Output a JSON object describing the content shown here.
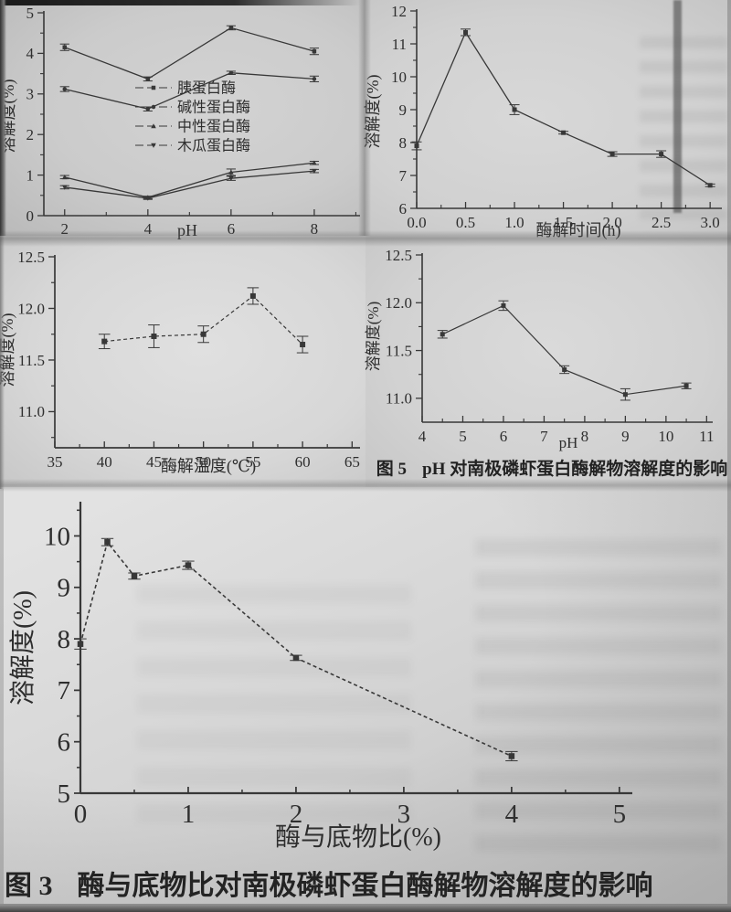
{
  "page": {
    "type": "scanned grayscale journal figure page",
    "ink_color": "#383838",
    "text_color": "#2e2e2e",
    "paper_color": "#cdcdcd"
  },
  "captions": {
    "fig5": {
      "label": "图 5",
      "text": "pH 对南极磷虾蛋白酶解物溶解度的影响"
    },
    "fig3": {
      "label": "图 3",
      "text": "酶与底物比对南极磷虾蛋白酶解物溶解度的影响"
    }
  },
  "chart_data": [
    {
      "id": "solubility-vs-ph-four-proteases",
      "type": "line",
      "title": "",
      "xlabel": "pH",
      "ylabel": "溶解度(%)",
      "xlim": [
        1.5,
        9.1
      ],
      "ylim": [
        0,
        5
      ],
      "xticks": [
        2,
        4,
        6,
        8
      ],
      "xtick_labels": [
        "2",
        "4",
        "6",
        "8"
      ],
      "xminor": [
        3,
        5,
        7,
        9
      ],
      "yticks": [
        0,
        1,
        2,
        3,
        4,
        5
      ],
      "ytick_labels": [
        "0",
        "1",
        "2",
        "3",
        "4",
        "5"
      ],
      "yminor": [
        0.5,
        1.5,
        2.5,
        3.5,
        4.5
      ],
      "grid": false,
      "legend_position": "center-right",
      "x": [
        2,
        4,
        6,
        8
      ],
      "series": [
        {
          "name": "胰蛋白酶",
          "marker": "square",
          "values": [
            4.15,
            3.37,
            4.63,
            4.05
          ],
          "err": [
            0.08,
            0.05,
            0.05,
            0.08
          ]
        },
        {
          "name": "碱性蛋白酶",
          "marker": "circle",
          "values": [
            3.12,
            2.63,
            3.52,
            3.37
          ],
          "err": [
            0.06,
            0.05,
            0.04,
            0.07
          ]
        },
        {
          "name": "中性蛋白酶",
          "marker": "triangle",
          "values": [
            0.95,
            0.45,
            1.07,
            1.3
          ],
          "err": [
            0.04,
            0.03,
            0.08,
            0.04
          ]
        },
        {
          "name": "木瓜蛋白酶",
          "marker": "triangle-down",
          "values": [
            0.7,
            0.43,
            0.92,
            1.1
          ],
          "err": [
            0.04,
            0.03,
            0.05,
            0.04
          ]
        }
      ]
    },
    {
      "id": "solubility-vs-hydrolysis-time",
      "type": "line",
      "title": "",
      "xlabel": "酶解时间(h)",
      "ylabel": "溶解度(%)",
      "xlim": [
        0,
        3.12
      ],
      "ylim": [
        6,
        12
      ],
      "xticks": [
        0,
        0.5,
        1,
        1.5,
        2,
        2.5,
        3
      ],
      "xtick_labels": [
        "0.0",
        "0.5",
        "1.0",
        "1.5",
        "2.0",
        "2.5",
        "3.0"
      ],
      "xminor": [
        0.25,
        0.75,
        1.25,
        1.75,
        2.25,
        2.75
      ],
      "yticks": [
        6,
        7,
        8,
        9,
        10,
        11,
        12
      ],
      "ytick_labels": [
        "6",
        "7",
        "8",
        "9",
        "10",
        "11",
        "12"
      ],
      "yminor": [
        6.5,
        7.5,
        8.5,
        9.5,
        10.5,
        11.5
      ],
      "grid": false,
      "x": [
        0,
        0.5,
        1,
        1.5,
        2,
        2.5,
        3
      ],
      "series": [
        {
          "name": "溶解度",
          "marker": "square",
          "values": [
            7.9,
            11.35,
            9.0,
            8.3,
            7.65,
            7.65,
            6.7
          ],
          "err": [
            0.12,
            0.1,
            0.15,
            0.04,
            0.07,
            0.1,
            0.04
          ]
        }
      ]
    },
    {
      "id": "solubility-vs-hydrolysis-temperature",
      "type": "line",
      "title": "",
      "xlabel": "酶解温度(℃)",
      "ylabel": "溶解度(%)",
      "xlim": [
        35,
        65.8
      ],
      "ylim": [
        10.65,
        12.5
      ],
      "xticks": [
        35,
        40,
        45,
        50,
        55,
        60,
        65
      ],
      "xtick_labels": [
        "35",
        "40",
        "45",
        "50",
        "55",
        "60",
        "65"
      ],
      "xminor": [
        37.5,
        42.5,
        47.5,
        52.5,
        57.5,
        62.5
      ],
      "yticks": [
        11.0,
        11.5,
        12.0,
        12.5
      ],
      "ytick_labels": [
        "11.0",
        "11.5",
        "12.0",
        "12.5"
      ],
      "yminor": [
        10.75,
        11.25,
        11.75,
        12.25
      ],
      "grid": false,
      "x": [
        40,
        45,
        50,
        55,
        60
      ],
      "series": [
        {
          "name": "溶解度",
          "marker": "square",
          "dash": "4 3",
          "values": [
            11.68,
            11.73,
            11.75,
            12.12,
            11.65
          ],
          "err": [
            0.07,
            0.11,
            0.08,
            0.08,
            0.08
          ]
        }
      ]
    },
    {
      "id": "solubility-vs-ph-hydrolysate",
      "type": "line",
      "title": "",
      "xlabel": "pH",
      "ylabel": "溶解度(%)",
      "xlim": [
        4,
        11.15
      ],
      "ylim": [
        10.75,
        12.5
      ],
      "xticks": [
        4,
        5,
        6,
        7,
        8,
        9,
        10,
        11
      ],
      "xtick_labels": [
        "4",
        "5",
        "6",
        "7",
        "8",
        "9",
        "10",
        "11"
      ],
      "xminor": [
        4.5,
        5.5,
        6.5,
        7.5,
        8.5,
        9.5,
        10.5
      ],
      "yticks": [
        11.0,
        11.5,
        12.0,
        12.5
      ],
      "ytick_labels": [
        "11.0",
        "11.5",
        "12.0",
        "12.5"
      ],
      "yminor": [
        11.25,
        11.75,
        12.25
      ],
      "grid": false,
      "caption": "图 5  pH 对南极磷虾蛋白酶解物溶解度的影响",
      "x": [
        4.5,
        6,
        7.5,
        9,
        10.5
      ],
      "series": [
        {
          "name": "溶解度",
          "marker": "square",
          "values": [
            11.67,
            11.97,
            11.3,
            11.04,
            11.13
          ],
          "err": [
            0.04,
            0.05,
            0.04,
            0.06,
            0.03
          ]
        }
      ]
    },
    {
      "id": "solubility-vs-enzyme-substrate-ratio",
      "type": "line",
      "title": "",
      "xlabel": "酶与底物比(%)",
      "ylabel": "溶解度(%)",
      "xlim": [
        0,
        5.12
      ],
      "ylim": [
        5,
        10.63
      ],
      "xticks": [
        0,
        1,
        2,
        3,
        4,
        5
      ],
      "xtick_labels": [
        "0",
        "1",
        "2",
        "3",
        "4",
        "5"
      ],
      "xminor": [
        0.5,
        1.5,
        2.5,
        3.5,
        4.5
      ],
      "yticks": [
        5,
        6,
        7,
        8,
        9,
        10
      ],
      "ytick_labels": [
        "5",
        "6",
        "7",
        "8",
        "9",
        "10"
      ],
      "yminor": [
        5.5,
        6.5,
        7.5,
        8.5,
        9.5,
        10.5
      ],
      "grid": false,
      "caption": "图 3  酶与底物比对南极磷虾蛋白酶解物溶解度的影响",
      "x": [
        0,
        0.25,
        0.5,
        1,
        2,
        4
      ],
      "series": [
        {
          "name": "溶解度",
          "marker": "square",
          "dash": "4 3",
          "values": [
            7.9,
            9.88,
            9.22,
            9.43,
            7.63,
            5.72
          ],
          "err": [
            0.1,
            0.07,
            0.06,
            0.08,
            0.05,
            0.09
          ]
        }
      ]
    }
  ]
}
